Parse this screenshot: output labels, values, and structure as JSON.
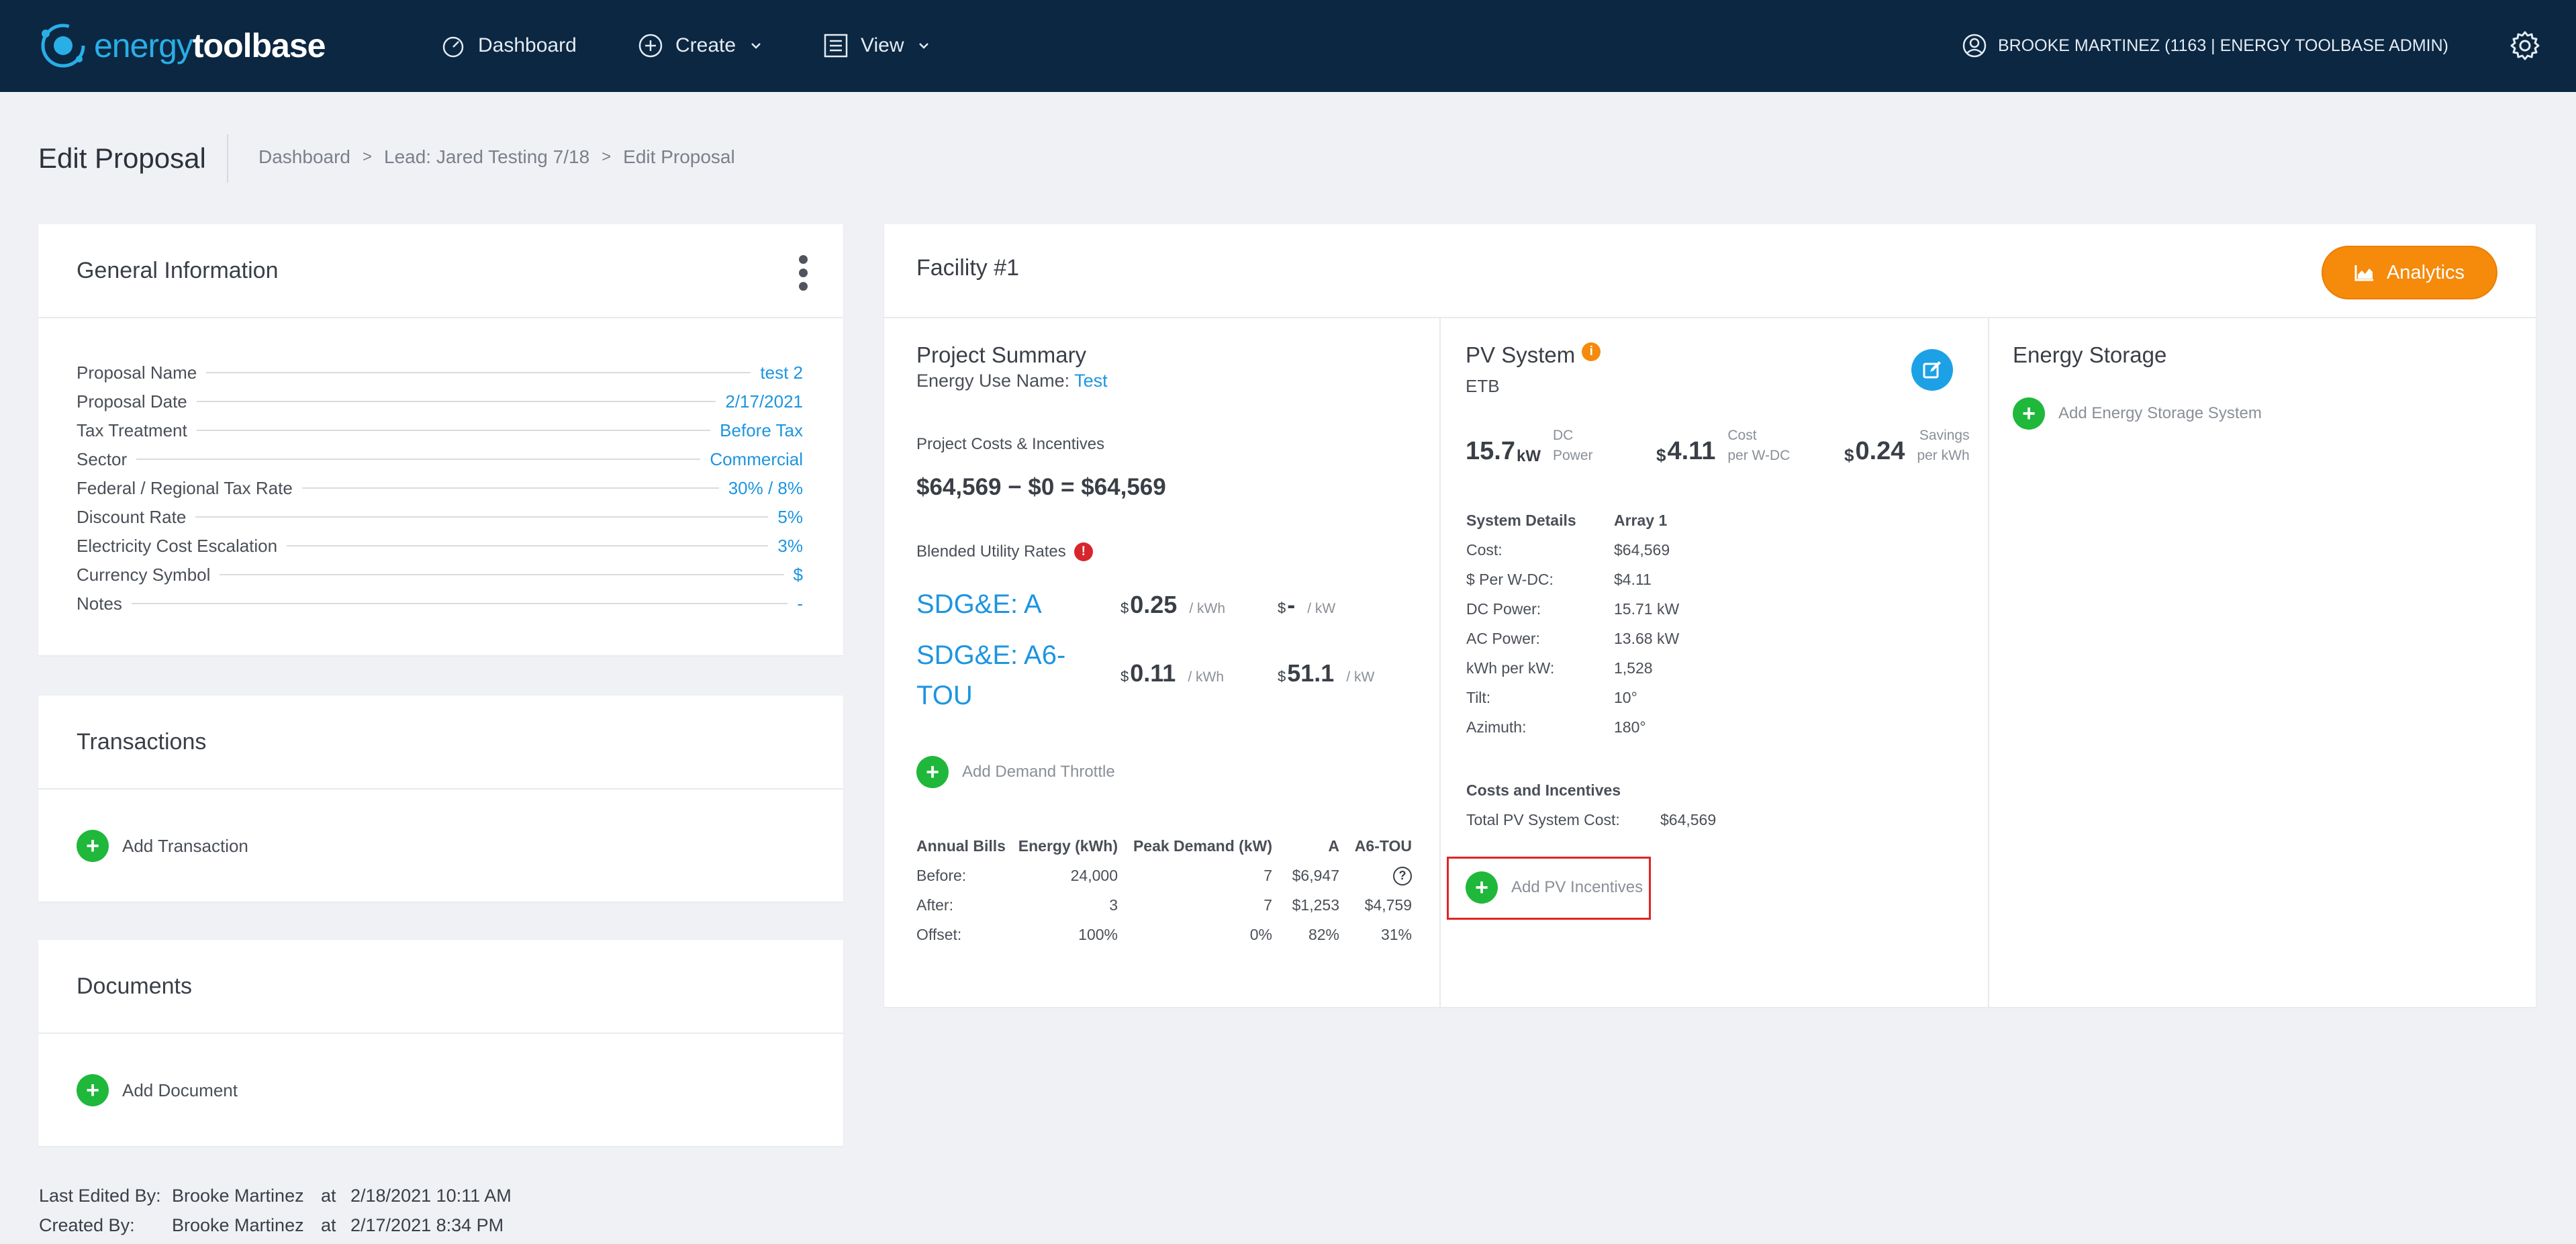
{
  "nav": {
    "logo_word_a": "energy",
    "logo_word_b": "toolbase",
    "dashboard": "Dashboard",
    "create": "Create",
    "view": "View",
    "user": "BROOKE MARTINEZ (1163 | ENERGY TOOLBASE ADMIN)"
  },
  "page": {
    "title": "Edit Proposal",
    "breadcrumb": [
      "Dashboard",
      "Lead: Jared Testing 7/18",
      "Edit Proposal"
    ]
  },
  "general": {
    "title": "General Information",
    "rows": [
      {
        "label": "Proposal Name",
        "value": "test 2"
      },
      {
        "label": "Proposal Date",
        "value": "2/17/2021"
      },
      {
        "label": "Tax Treatment",
        "value": "Before Tax"
      },
      {
        "label": "Sector",
        "value": "Commercial"
      },
      {
        "label": "Federal / Regional Tax Rate",
        "value": "30% / 8%"
      },
      {
        "label": "Discount Rate",
        "value": "5%"
      },
      {
        "label": "Electricity Cost Escalation",
        "value": "3%"
      },
      {
        "label": "Currency Symbol",
        "value": "$"
      },
      {
        "label": "Notes",
        "value": "-"
      }
    ]
  },
  "transactions": {
    "title": "Transactions",
    "add": "Add Transaction"
  },
  "documents": {
    "title": "Documents",
    "add": "Add Document"
  },
  "meta": {
    "edited_label": "Last Edited By:",
    "edited_by": "Brooke Martinez",
    "at": "at",
    "edited_at": "2/18/2021 10:11 AM",
    "created_label": "Created By:",
    "created_by": "Brooke Martinez",
    "created_at": "2/17/2021 8:34 PM"
  },
  "facility": {
    "title": "Facility #1",
    "analytics": "Analytics",
    "project": {
      "title": "Project Summary",
      "energy_use_label": "Energy Use Name:",
      "energy_use_value": "Test",
      "costs_label": "Project Costs & Incentives",
      "costs_value": "$64,569 − $0 = $64,569",
      "rates_label": "Blended Utility Rates",
      "rates": [
        {
          "name": "SDG&E: A",
          "energy_cur": "$",
          "energy": "0.25",
          "energy_unit": "/ kWh",
          "demand_cur": "$",
          "demand": "-",
          "demand_unit": "/ kW"
        },
        {
          "name": "SDG&E: A6-TOU",
          "energy_cur": "$",
          "energy": "0.11",
          "energy_unit": "/ kWh",
          "demand_cur": "$",
          "demand": "51.1",
          "demand_unit": "/ kW"
        }
      ],
      "add_throttle": "Add Demand Throttle",
      "bills": {
        "headers": [
          "Annual Bills",
          "Energy (kWh)",
          "Peak Demand (kW)",
          "A",
          "A6-TOU"
        ],
        "rows": [
          [
            "Before:",
            "24,000",
            "7",
            "$6,947",
            "?"
          ],
          [
            "After:",
            "3",
            "7",
            "$1,253",
            "$4,759"
          ],
          [
            "Offset:",
            "100%",
            "0%",
            "82%",
            "31%"
          ]
        ]
      }
    },
    "pv": {
      "title": "PV System",
      "subtitle": "ETB",
      "dc_power": "15.7",
      "dc_unit": "kW",
      "dc_label_a": "DC",
      "dc_label_b": "Power",
      "cost_cur": "$",
      "cost": "4.11",
      "cost_label_a": "Cost",
      "cost_label_b": "per W-DC",
      "savings_cur": "$",
      "savings": "0.24",
      "savings_label_a": "Savings",
      "savings_label_b": "per kWh",
      "details_head": "System Details",
      "array_head": "Array 1",
      "details": [
        {
          "label": "Cost:",
          "value": "$64,569"
        },
        {
          "label": "$ Per W-DC:",
          "value": "$4.11"
        },
        {
          "label": "DC Power:",
          "value": "15.71 kW"
        },
        {
          "label": "AC Power:",
          "value": "13.68 kW"
        },
        {
          "label": "kWh per kW:",
          "value": "1,528"
        },
        {
          "label": "Tilt:",
          "value": "10°"
        },
        {
          "label": "Azimuth:",
          "value": "180°"
        }
      ],
      "costs_head": "Costs and Incentives",
      "total_label": "Total PV System Cost:",
      "total_value": "$64,569",
      "add_incentives": "Add PV Incentives"
    },
    "storage": {
      "title": "Energy Storage",
      "add": "Add Energy Storage System"
    }
  }
}
